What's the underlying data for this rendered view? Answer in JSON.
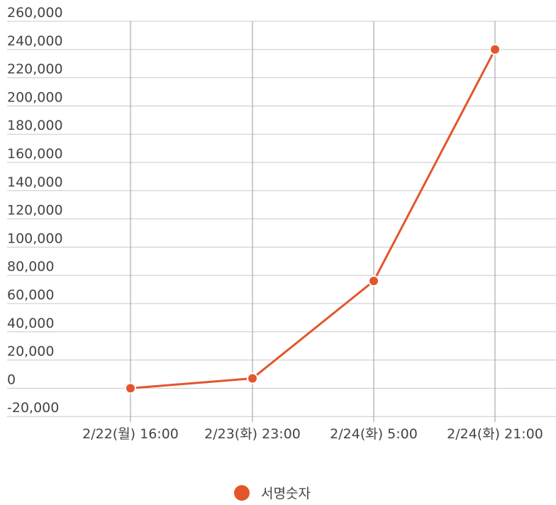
{
  "chart_data": {
    "type": "line",
    "x": [
      "2/22(월) 16:00",
      "2/23(화) 23:00",
      "2/24(화) 5:00",
      "2/24(화) 21:00"
    ],
    "series": [
      {
        "name": "서명숫자",
        "values": [
          0,
          7000,
          76000,
          240000
        ]
      }
    ],
    "ylim": [
      -20000,
      260000
    ],
    "yticks": [
      "260,000",
      "240,000",
      "220,000",
      "200,000",
      "180,000",
      "160,000",
      "140,000",
      "120,000",
      "100,000",
      "80,000",
      "60,000",
      "40,000",
      "20,000",
      "0",
      "-20,000"
    ],
    "ytick_values": [
      260000,
      240000,
      220000,
      200000,
      180000,
      160000,
      140000,
      120000,
      100000,
      80000,
      60000,
      40000,
      20000,
      0,
      -20000
    ],
    "grid": true,
    "legend_position": "bottom-center",
    "title": "",
    "xlabel": "",
    "ylabel": ""
  },
  "colors": {
    "series": "#e4552b",
    "grid": "#c8c8c8",
    "axis": "#9a9a9a"
  }
}
